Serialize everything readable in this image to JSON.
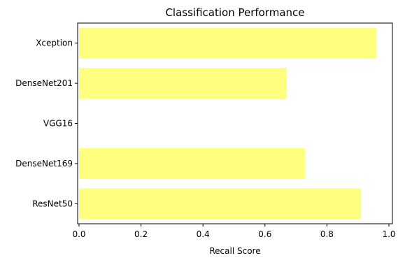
{
  "chart_data": {
    "type": "bar",
    "orientation": "horizontal",
    "title": "Classification Performance",
    "xlabel": "Recall Score",
    "ylabel": "",
    "categories": [
      "ResNet50",
      "DenseNet169",
      "VGG16",
      "DenseNet201",
      "Xception"
    ],
    "values": [
      0.91,
      0.73,
      0.0,
      0.67,
      0.96
    ],
    "xlim": [
      0.0,
      1.0
    ],
    "xticks": [
      "0.0",
      "0.2",
      "0.4",
      "0.6",
      "0.8",
      "1.0"
    ],
    "grid": false,
    "legend": "none",
    "bar_color": "#ffff7f"
  }
}
